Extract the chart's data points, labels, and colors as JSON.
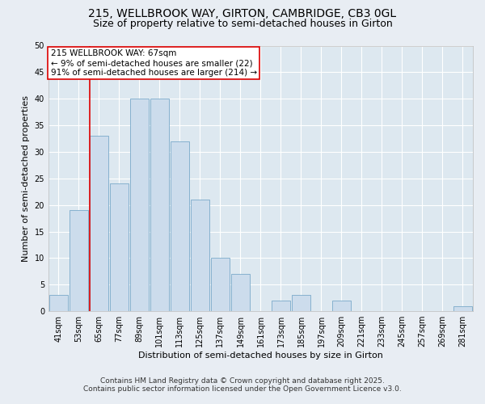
{
  "title_line1": "215, WELLBROOK WAY, GIRTON, CAMBRIDGE, CB3 0GL",
  "title_line2": "Size of property relative to semi-detached houses in Girton",
  "xlabel": "Distribution of semi-detached houses by size in Girton",
  "ylabel": "Number of semi-detached properties",
  "categories": [
    "41sqm",
    "53sqm",
    "65sqm",
    "77sqm",
    "89sqm",
    "101sqm",
    "113sqm",
    "125sqm",
    "137sqm",
    "149sqm",
    "161sqm",
    "173sqm",
    "185sqm",
    "197sqm",
    "209sqm",
    "221sqm",
    "233sqm",
    "245sqm",
    "257sqm",
    "269sqm",
    "281sqm"
  ],
  "values": [
    3,
    19,
    33,
    24,
    40,
    40,
    32,
    21,
    10,
    7,
    0,
    2,
    3,
    0,
    2,
    0,
    0,
    0,
    0,
    0,
    1
  ],
  "bar_color": "#ccdcec",
  "bar_edge_color": "#7aaaca",
  "property_index": 2,
  "property_label": "215 WELLBROOK WAY: 67sqm",
  "pct_smaller": "9% of semi-detached houses are smaller (22)",
  "pct_larger": "91% of semi-detached houses are larger (214)",
  "red_line_color": "#dd0000",
  "annotation_box_edge": "#dd0000",
  "ylim": [
    0,
    50
  ],
  "yticks": [
    0,
    5,
    10,
    15,
    20,
    25,
    30,
    35,
    40,
    45,
    50
  ],
  "bg_color": "#e8edf3",
  "plot_bg_color": "#dde8f0",
  "footer_line1": "Contains HM Land Registry data © Crown copyright and database right 2025.",
  "footer_line2": "Contains public sector information licensed under the Open Government Licence v3.0.",
  "title_fontsize": 10,
  "subtitle_fontsize": 9,
  "axis_label_fontsize": 8,
  "tick_fontsize": 7,
  "annotation_fontsize": 7.5,
  "footer_fontsize": 6.5
}
